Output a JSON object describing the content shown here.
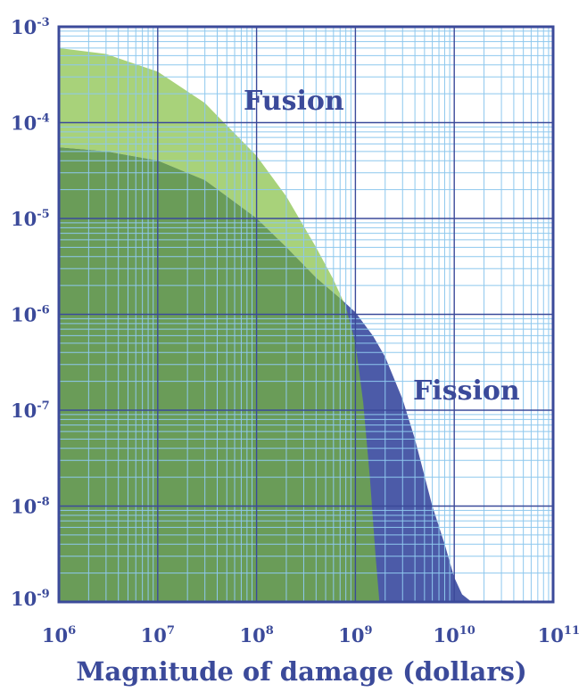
{
  "chart_data": {
    "type": "area",
    "title": "",
    "xlabel": "Magnitude of damage (dollars)",
    "ylabel": "",
    "x_scale": "log",
    "y_scale": "log",
    "xlim": [
      1000000,
      100000000000
    ],
    "ylim": [
      1e-09,
      0.001
    ],
    "grid": true,
    "x_ticks": [
      {
        "base": "10",
        "exp": "6"
      },
      {
        "base": "10",
        "exp": "7"
      },
      {
        "base": "10",
        "exp": "8"
      },
      {
        "base": "10",
        "exp": "9"
      },
      {
        "base": "10",
        "exp": "10"
      },
      {
        "base": "10",
        "exp": "11"
      }
    ],
    "y_ticks": [
      {
        "base": "10",
        "exp": "-3"
      },
      {
        "base": "10",
        "exp": "-4"
      },
      {
        "base": "10",
        "exp": "-5"
      },
      {
        "base": "10",
        "exp": "-6"
      },
      {
        "base": "10",
        "exp": "-7"
      },
      {
        "base": "10",
        "exp": "-8"
      },
      {
        "base": "10",
        "exp": "-9"
      }
    ],
    "series": [
      {
        "name": "Fusion",
        "color": "#a8d27a",
        "x": [
          1000000,
          3000000,
          10000000,
          30000000,
          100000000,
          200000000,
          400000000,
          600000000,
          800000000,
          1000000000,
          1200000000,
          1400000000,
          1600000000,
          1750000000
        ],
        "y": [
          0.0006,
          0.00052,
          0.00034,
          0.00016,
          4.5e-05,
          1.7e-05,
          5e-06,
          2.3e-06,
          1.2e-06,
          5e-07,
          1.2e-07,
          2e-08,
          3e-09,
          1e-09
        ]
      },
      {
        "name": "Fission",
        "color": "#4c5ba8",
        "x": [
          1000000,
          3000000,
          10000000,
          30000000,
          100000000,
          200000000,
          400000000,
          800000000,
          1000000000,
          1500000000,
          2000000000,
          3000000000,
          4000000000,
          6000000000,
          8000000000,
          10000000000,
          12000000000,
          15000000000
        ],
        "y": [
          5.5e-05,
          5e-05,
          4e-05,
          2.5e-05,
          1e-05,
          5e-06,
          2.4e-06,
          1.3e-06,
          1.05e-06,
          6e-07,
          3.6e-07,
          1.3e-07,
          5e-08,
          1e-08,
          4e-09,
          1.8e-09,
          1.2e-09,
          1e-09
        ]
      }
    ],
    "overlap_color": "#6a9c58"
  }
}
